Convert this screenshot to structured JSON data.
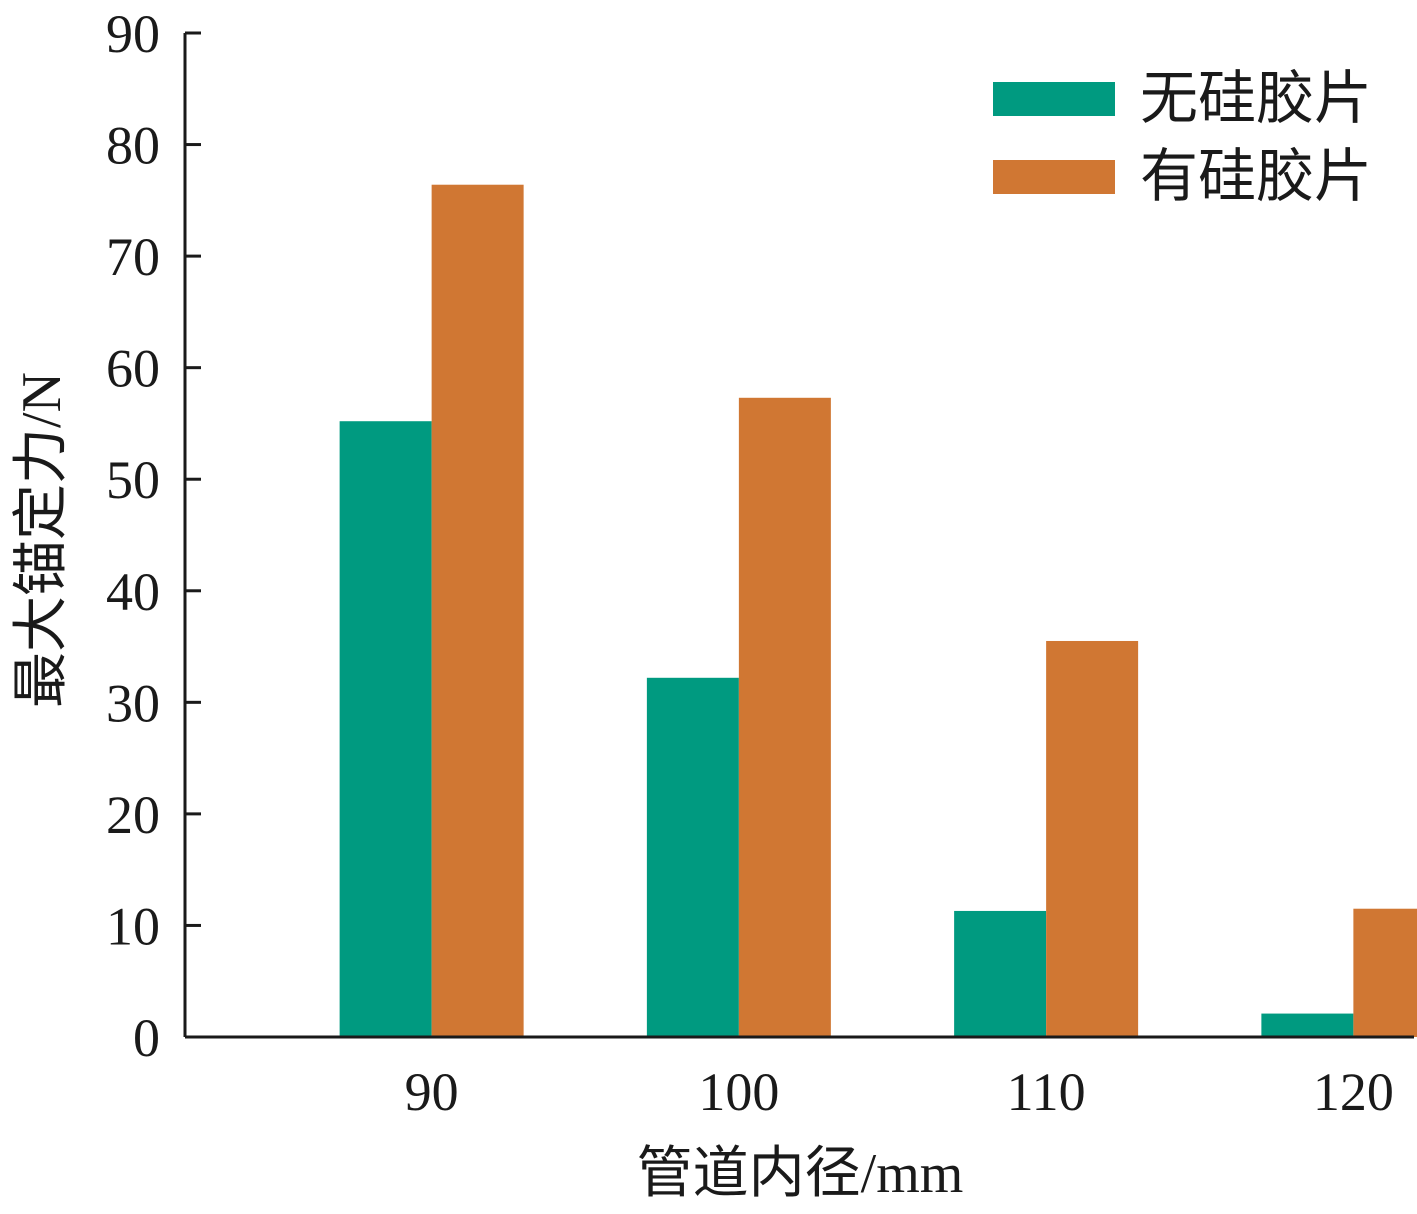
{
  "chart_data": {
    "type": "bar",
    "categories": [
      "90",
      "100",
      "110",
      "120"
    ],
    "series": [
      {
        "name": "无硅胶片",
        "color": "#009a80",
        "values": [
          55.2,
          32.2,
          11.3,
          2.1
        ]
      },
      {
        "name": "有硅胶片",
        "color": "#d07733",
        "values": [
          76.4,
          57.3,
          35.5,
          11.5
        ]
      }
    ],
    "title": "",
    "xlabel": "管道内径/mm",
    "ylabel": "最大锚定力/N",
    "ylim": [
      0,
      90
    ],
    "yticks": [
      "0",
      "10",
      "20",
      "30",
      "40",
      "50",
      "60",
      "70",
      "80",
      "90"
    ],
    "grid": false,
    "legend_position": "top-right"
  }
}
